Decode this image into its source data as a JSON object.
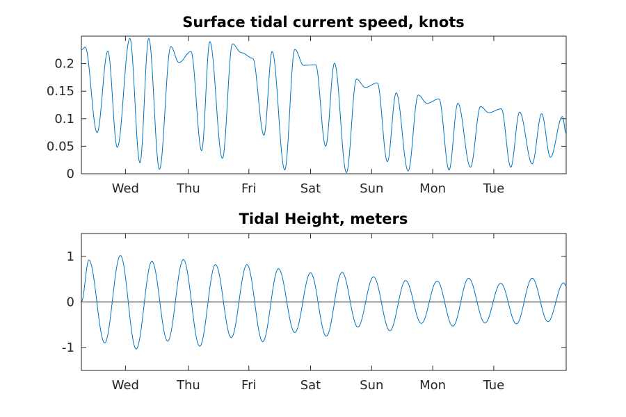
{
  "chart_data": [
    {
      "type": "line",
      "title": "Surface tidal current speed, knots",
      "xlabel": "",
      "ylabel": "",
      "x_tick_labels": [
        "Wed",
        "Thu",
        "Fri",
        "Sat",
        "Sun",
        "Mon",
        "Tue"
      ],
      "y_tick_labels": [
        "0",
        "0.05",
        "0.1",
        "0.15",
        "0.2"
      ],
      "y_ticks": [
        0,
        0.05,
        0.1,
        0.15,
        0.2
      ],
      "xlim_days": [
        0,
        7.7
      ],
      "ylim": [
        0,
        0.25
      ],
      "grid": false,
      "line_color": "#0072BD",
      "x": [
        0.0,
        0.06,
        0.25,
        0.42,
        0.57,
        0.77,
        0.93,
        1.07,
        1.24,
        1.42,
        1.55,
        1.74,
        1.91,
        2.04,
        2.24,
        2.4,
        2.54,
        2.72,
        2.9,
        3.03,
        3.23,
        3.39,
        3.53,
        3.72,
        3.88,
        4.02,
        4.21,
        4.37,
        4.51,
        4.7,
        4.86,
        5.0,
        5.19,
        5.35,
        5.49,
        5.68,
        5.84,
        5.98,
        6.18,
        6.34,
        6.47,
        6.67,
        6.82,
        6.96,
        7.16,
        7.31,
        7.45,
        7.64,
        7.7
      ],
      "y": [
        0.225,
        0.23,
        0.075,
        0.223,
        0.048,
        0.246,
        0.02,
        0.246,
        0.008,
        0.231,
        0.202,
        0.222,
        0.042,
        0.24,
        0.028,
        0.236,
        0.22,
        0.21,
        0.07,
        0.222,
        0.007,
        0.226,
        0.197,
        0.198,
        0.05,
        0.201,
        0.002,
        0.172,
        0.157,
        0.165,
        0.022,
        0.147,
        0.005,
        0.143,
        0.128,
        0.136,
        0.007,
        0.128,
        0.012,
        0.122,
        0.111,
        0.118,
        0.012,
        0.112,
        0.018,
        0.109,
        0.03,
        0.104,
        0.073
      ]
    },
    {
      "type": "line",
      "title": "Tidal Height, meters",
      "xlabel": "",
      "ylabel": "",
      "x_tick_labels": [
        "Wed",
        "Thu",
        "Fri",
        "Sat",
        "Sun",
        "Mon",
        "Tue"
      ],
      "y_tick_labels": [
        "-1",
        "0",
        "1"
      ],
      "y_ticks": [
        -1,
        0,
        1
      ],
      "xlim_days": [
        0,
        7.7
      ],
      "ylim": [
        -1.5,
        1.5
      ],
      "grid": false,
      "zero_line": true,
      "line_color": "#0072BD",
      "x": [
        0.0,
        0.12,
        0.37,
        0.62,
        0.87,
        1.12,
        1.37,
        1.62,
        1.88,
        2.13,
        2.38,
        2.63,
        2.88,
        3.13,
        3.39,
        3.64,
        3.89,
        4.14,
        4.39,
        4.64,
        4.9,
        5.15,
        5.4,
        5.65,
        5.9,
        6.15,
        6.41,
        6.66,
        6.91,
        7.16,
        7.41,
        7.66,
        7.7
      ],
      "y": [
        0.0,
        0.92,
        -0.9,
        1.02,
        -1.03,
        0.89,
        -0.86,
        0.93,
        -0.97,
        0.82,
        -0.78,
        0.82,
        -0.87,
        0.73,
        -0.67,
        0.64,
        -0.75,
        0.65,
        -0.55,
        0.55,
        -0.63,
        0.47,
        -0.47,
        0.46,
        -0.53,
        0.52,
        -0.46,
        0.41,
        -0.48,
        0.52,
        -0.43,
        0.42,
        0.35
      ]
    }
  ]
}
